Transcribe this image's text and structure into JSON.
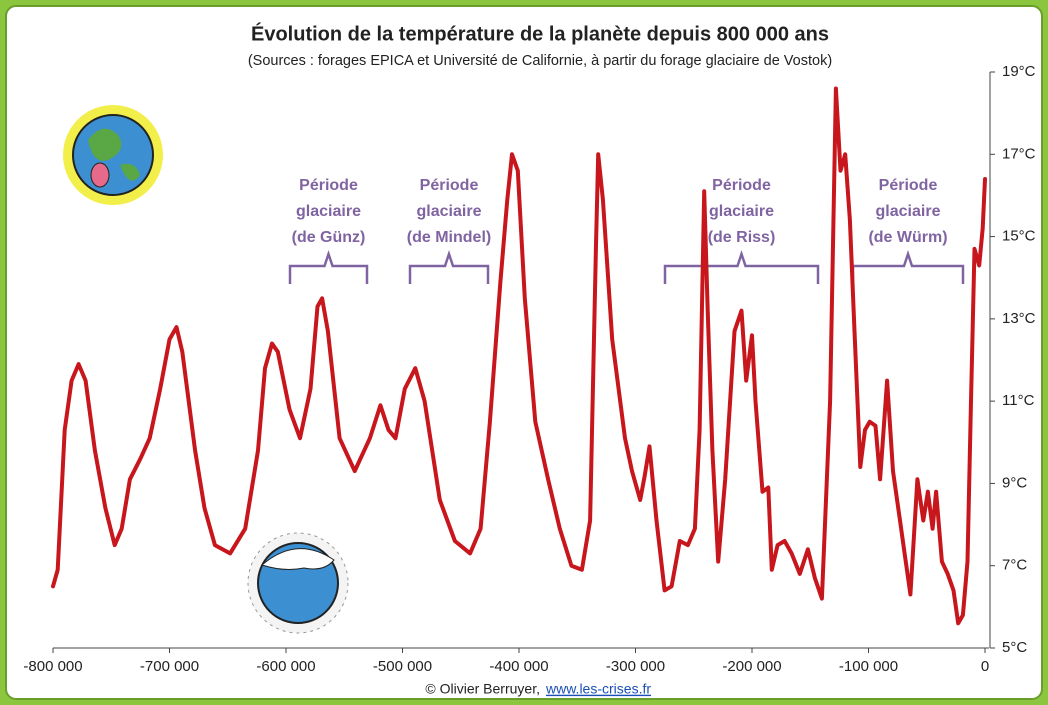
{
  "chart_data": {
    "type": "line",
    "title": "Évolution de la température de la planète depuis 800 000 ans",
    "subtitle": "(Sources : forages EPICA et Université de Californie, à partir du forage glaciaire de Vostok)",
    "x": [
      -800000,
      -796000,
      -790000,
      -784000,
      -778000,
      -772000,
      -764000,
      -755000,
      -747000,
      -741000,
      -734000,
      -725000,
      -717000,
      -708000,
      -700000,
      -694000,
      -689000,
      -678000,
      -670000,
      -661000,
      -648000,
      -635000,
      -624000,
      -618000,
      -612000,
      -607000,
      -597000,
      -588000,
      -579000,
      -573000,
      -569000,
      -564000,
      -554000,
      -541000,
      -528000,
      -519000,
      -512000,
      -506000,
      -498000,
      -489000,
      -481000,
      -468000,
      -455000,
      -442000,
      -433000,
      -425000,
      -416000,
      -410000,
      -406000,
      -401000,
      -395000,
      -386000,
      -375000,
      -365000,
      -355000,
      -346000,
      -339000,
      -334000,
      -332000,
      -328000,
      -320000,
      -309000,
      -303000,
      -296000,
      -292000,
      -288000,
      -282000,
      -275000,
      -269000,
      -262000,
      -255000,
      -249000,
      -245000,
      -241000,
      -238000,
      -234000,
      -229000,
      -223000,
      -215000,
      -209000,
      -205000,
      -200000,
      -197000,
      -191000,
      -186000,
      -183000,
      -178000,
      -172000,
      -166000,
      -159000,
      -152000,
      -146000,
      -140000,
      -133000,
      -128000,
      -124000,
      -120000,
      -116000,
      -112000,
      -107000,
      -103000,
      -99000,
      -94000,
      -90000,
      -84000,
      -79000,
      -73000,
      -69000,
      -64000,
      -58000,
      -53000,
      -49000,
      -45000,
      -42000,
      -37000,
      -32000,
      -27000,
      -23000,
      -19000,
      -15000,
      -12000,
      -9000,
      -5000,
      -2000,
      0
    ],
    "values": [
      6.5,
      6.9,
      10.3,
      11.5,
      11.9,
      11.5,
      9.8,
      8.4,
      7.5,
      7.9,
      9.1,
      9.6,
      10.1,
      11.3,
      12.5,
      12.8,
      12.2,
      9.8,
      8.4,
      7.5,
      7.3,
      7.9,
      9.8,
      11.8,
      12.4,
      12.2,
      10.8,
      10.1,
      11.3,
      13.3,
      13.5,
      12.7,
      10.1,
      9.3,
      10.1,
      10.9,
      10.3,
      10.1,
      11.3,
      11.8,
      11.0,
      8.6,
      7.6,
      7.3,
      7.9,
      10.5,
      13.9,
      15.9,
      17.0,
      16.6,
      13.5,
      10.5,
      9.1,
      7.9,
      7.0,
      6.9,
      8.1,
      14.7,
      17.0,
      15.9,
      12.5,
      10.1,
      9.3,
      8.6,
      9.2,
      9.9,
      8.1,
      6.4,
      6.5,
      7.6,
      7.5,
      7.9,
      10.3,
      16.1,
      13.2,
      9.8,
      7.1,
      9.1,
      12.7,
      13.2,
      11.5,
      12.6,
      11.0,
      8.8,
      8.9,
      6.9,
      7.5,
      7.6,
      7.3,
      6.8,
      7.4,
      6.7,
      6.2,
      11.0,
      18.6,
      16.6,
      17.0,
      15.4,
      12.7,
      9.4,
      10.3,
      10.5,
      10.4,
      9.1,
      11.5,
      9.3,
      8.1,
      7.3,
      6.3,
      9.1,
      8.1,
      8.8,
      7.9,
      8.8,
      7.1,
      6.8,
      6.4,
      5.6,
      5.8,
      7.1,
      11.0,
      14.7,
      14.3,
      15.2,
      16.4
    ],
    "color": "#c8161d",
    "xlim": [
      -800000,
      0
    ],
    "xticks": [
      {
        "value": -800000,
        "label": "-800 000"
      },
      {
        "value": -700000,
        "label": "-700 000"
      },
      {
        "value": -600000,
        "label": "-600 000"
      },
      {
        "value": -500000,
        "label": "-500 000"
      },
      {
        "value": -400000,
        "label": "-400 000"
      },
      {
        "value": -300000,
        "label": "-300 000"
      },
      {
        "value": -200000,
        "label": "-200 000"
      },
      {
        "value": -100000,
        "label": "-100 000"
      },
      0
    ],
    "ylim": [
      5,
      19
    ],
    "yticks": [
      {
        "value": 5,
        "label": "5°C"
      },
      {
        "value": 7,
        "label": "7°C"
      },
      {
        "value": 9,
        "label": "9°C"
      },
      {
        "value": 11,
        "label": "11°C"
      },
      {
        "value": 13,
        "label": "13°C"
      },
      {
        "value": 15,
        "label": "15°C"
      },
      {
        "value": 17,
        "label": "17°C"
      },
      {
        "value": 19,
        "label": "19°C"
      }
    ],
    "annotations": [
      {
        "lines": [
          "Période",
          "glaciaire",
          "(de Günz)"
        ]
      },
      {
        "lines": [
          "Période",
          "glaciaire",
          "(de Mindel)"
        ]
      },
      {
        "lines": [
          "Période",
          "glaciaire",
          "(de Riss)"
        ]
      },
      {
        "lines": [
          "Période",
          "glaciaire",
          "(de Würm)"
        ]
      }
    ],
    "credit": {
      "text": "© Olivier Berruyer,",
      "link": "www.les-crises.fr"
    }
  }
}
